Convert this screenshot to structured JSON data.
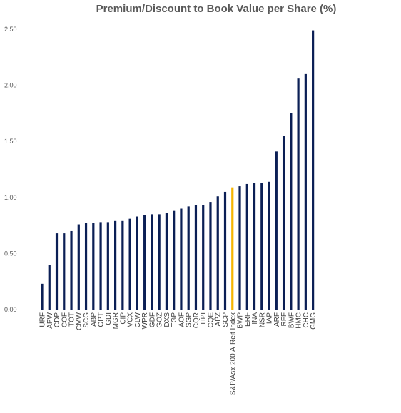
{
  "chart_data": {
    "type": "bar",
    "title": "Premium/Discount to Book Value per Share (%)",
    "xlabel": "",
    "ylabel": "",
    "ylim": [
      0,
      2.5
    ],
    "yticks": [
      "0.00",
      "0.50",
      "1.00",
      "1.50",
      "2.00",
      "2.50"
    ],
    "grid": false,
    "legend": "none",
    "colors": {
      "bar": "#0b1f55",
      "highlight": "#f5b400"
    },
    "highlight_category": "S&P/Asx 200 A-Reit Index",
    "categories": [
      "URF",
      "APW",
      "CDP",
      "COF",
      "TOT",
      "CMW",
      "SCG",
      "ABP",
      "GPT",
      "GDI",
      "MGR",
      "CIP",
      "VCX",
      "CLW",
      "WPR",
      "GDF",
      "GOZ",
      "DXS",
      "TGP",
      "AOF",
      "SGP",
      "CQR",
      "HPI",
      "CQE",
      "APZ",
      "SCP",
      "S&P/Asx 200 A-Reit Index",
      "BWP",
      "ERF",
      "INA",
      "NSR",
      "IAP",
      "ARF",
      "RFF",
      "BWF",
      "HMC",
      "CHC",
      "GMG"
    ],
    "values": [
      0.23,
      0.4,
      0.68,
      0.68,
      0.7,
      0.76,
      0.77,
      0.77,
      0.78,
      0.78,
      0.79,
      0.79,
      0.81,
      0.83,
      0.84,
      0.85,
      0.85,
      0.86,
      0.88,
      0.9,
      0.92,
      0.93,
      0.93,
      0.96,
      1.01,
      1.05,
      1.09,
      1.1,
      1.12,
      1.13,
      1.13,
      1.14,
      1.41,
      1.55,
      1.75,
      2.06,
      2.1,
      2.49
    ]
  }
}
